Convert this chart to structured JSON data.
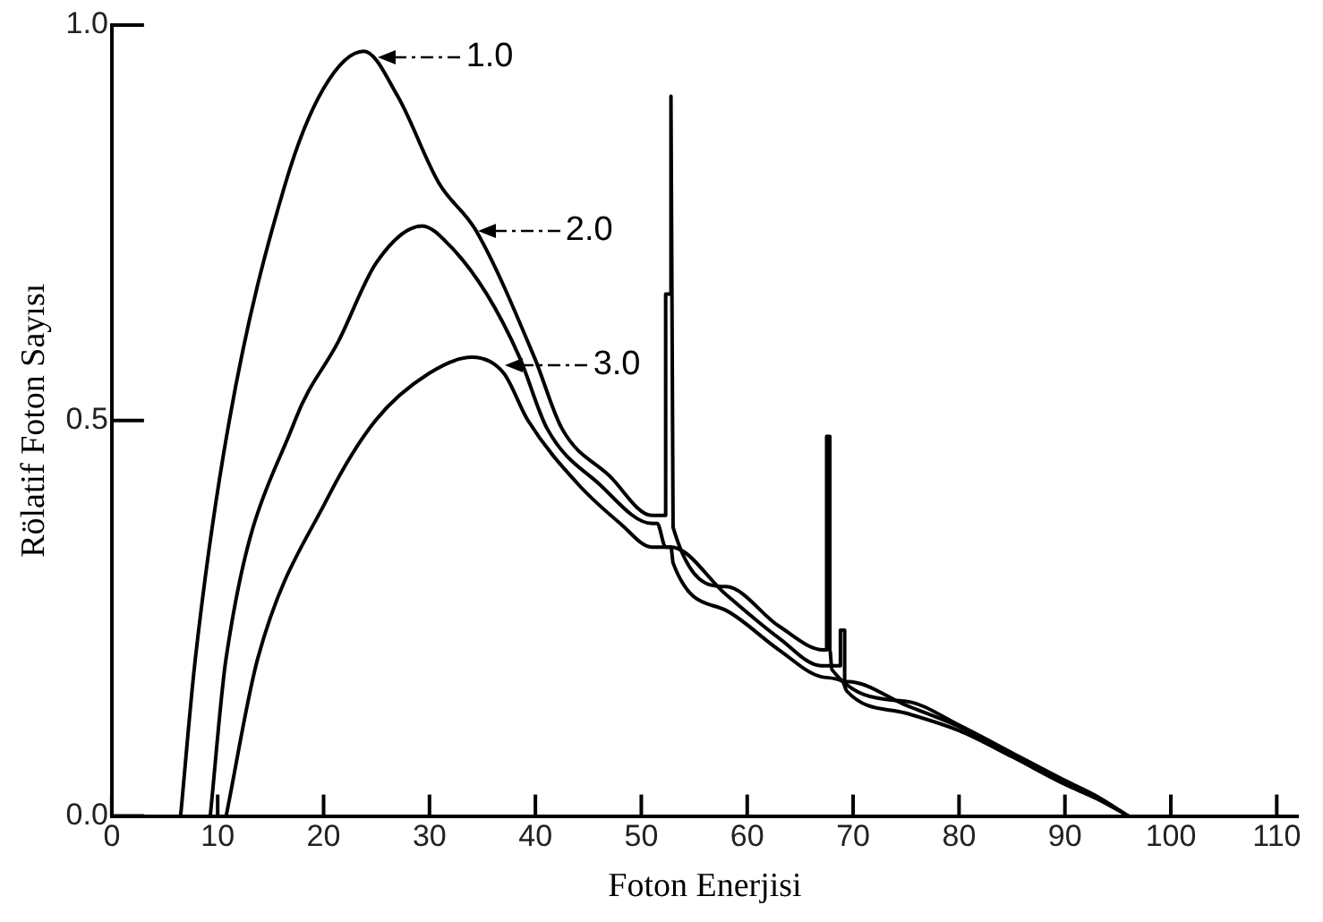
{
  "chart_data": {
    "type": "line",
    "xlabel": "Foton Enerjisi",
    "ylabel": "Rölatif Foton Sayısı",
    "xlim": [
      0,
      112
    ],
    "xticks": [
      0,
      10,
      20,
      30,
      40,
      50,
      60,
      70,
      80,
      90,
      100,
      110
    ],
    "ylim": [
      0,
      1
    ],
    "yticks": [
      {
        "value": 0,
        "label": "0.0"
      },
      {
        "value": 0.5,
        "label": "0.5"
      },
      {
        "value": 1,
        "label": "1.0"
      }
    ],
    "grid": false,
    "legend": false,
    "marker": "none",
    "line_style": "solid",
    "series": [
      {
        "color": "#000000",
        "x": [
          6.5,
          7.9,
          11.1,
          16.4,
          20,
          23.8,
          27,
          30.9,
          34.4,
          39.9,
          42.5,
          47,
          51,
          52.3,
          52.3,
          52.8,
          52.8,
          53,
          58,
          63,
          67.2,
          67.5,
          67.5,
          67.8,
          67.8,
          68,
          75,
          80,
          85,
          90,
          93,
          96
        ],
        "values": [
          0,
          0.2,
          0.5,
          0.8,
          0.92,
          0.967,
          0.91,
          0.8,
          0.74,
          0.58,
          0.49,
          0.43,
          0.38,
          0.38,
          0.66,
          0.66,
          0.91,
          0.365,
          0.29,
          0.24,
          0.21,
          0.21,
          0.48,
          0.48,
          0.21,
          0.185,
          0.145,
          0.115,
          0.08,
          0.045,
          0.025,
          0
        ]
      },
      {
        "color": "#000000",
        "x": [
          9.3,
          10.8,
          17.3,
          21.4,
          25,
          29.3,
          32,
          35.4,
          38.5,
          41.1,
          46,
          51,
          51.5,
          52.3,
          52.8,
          58,
          63,
          67,
          68.8,
          68.8,
          69.2,
          69.2,
          69.5,
          75,
          80,
          85,
          90,
          93,
          96
        ],
        "values": [
          0,
          0.2,
          0.5,
          0.6,
          0.7,
          0.746,
          0.72,
          0.66,
          0.58,
          0.49,
          0.42,
          0.37,
          0.37,
          0.34,
          0.34,
          0.28,
          0.225,
          0.19,
          0.19,
          0.235,
          0.235,
          0.17,
          0.17,
          0.14,
          0.113,
          0.078,
          0.043,
          0.024,
          0
        ]
      },
      {
        "color": "#000000",
        "x": [
          10.8,
          13.8,
          20.3,
          24.9,
          30,
          34,
          37,
          39.3,
          44,
          48,
          51,
          51.4,
          52.8,
          53,
          58,
          63,
          67,
          69,
          69.4,
          75,
          80,
          85,
          90,
          93,
          96
        ],
        "values": [
          0,
          0.2,
          0.4,
          0.5,
          0.56,
          0.58,
          0.56,
          0.5,
          0.42,
          0.37,
          0.34,
          0.34,
          0.34,
          0.32,
          0.26,
          0.21,
          0.176,
          0.17,
          0.158,
          0.13,
          0.108,
          0.075,
          0.04,
          0.022,
          0
        ]
      }
    ],
    "annotations": [
      {
        "text": "1.0",
        "x": 25,
        "y": 0.96
      },
      {
        "text": "2.0",
        "x": 34.4,
        "y": 0.74
      },
      {
        "text": "3.0",
        "x": 37,
        "y": 0.57
      }
    ]
  }
}
